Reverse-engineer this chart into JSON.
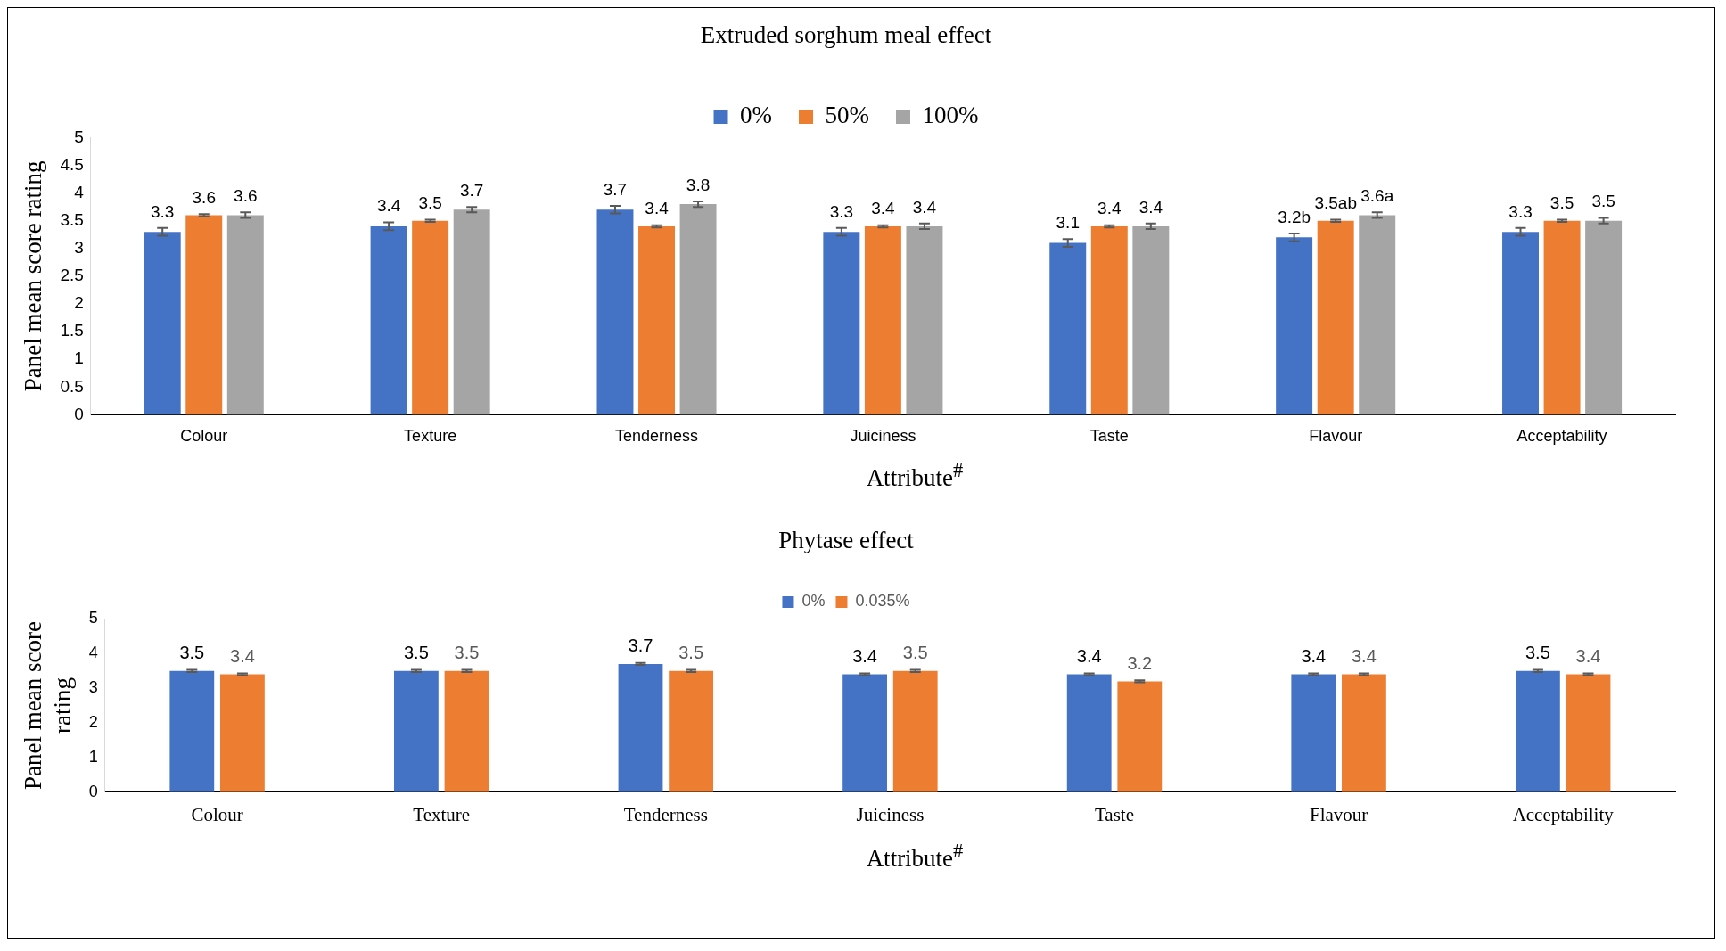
{
  "chart_data": [
    {
      "type": "bar",
      "title": "Extruded sorghum meal effect",
      "xlabel": "Attribute$^{#}$",
      "ylabel": "Panel mean score rating",
      "categories": [
        "Colour",
        "Texture",
        "Tenderness",
        "Juiciness",
        "Taste",
        "Flavour",
        "Acceptability"
      ],
      "series": [
        {
          "name": "0%",
          "color": "#4472c4",
          "values": [
            3.3,
            3.4,
            3.7,
            3.3,
            3.1,
            3.2,
            3.3
          ],
          "errors": [
            0.07,
            0.07,
            0.07,
            0.07,
            0.07,
            0.07,
            0.07
          ],
          "value_labels": [
            "3.3",
            "3.4",
            "3.7",
            "3.3",
            "3.1",
            "3.2b",
            "3.3"
          ]
        },
        {
          "name": "50%",
          "color": "#ed7d31",
          "values": [
            3.6,
            3.5,
            3.4,
            3.4,
            3.4,
            3.5,
            3.5
          ],
          "errors": [
            0.02,
            0.02,
            0.02,
            0.02,
            0.02,
            0.02,
            0.02
          ],
          "value_labels": [
            "3.6",
            "3.5",
            "3.4",
            "3.4",
            "3.4",
            "3.5ab",
            "3.5"
          ]
        },
        {
          "name": "100%",
          "color": "#a5a5a5",
          "values": [
            3.6,
            3.7,
            3.8,
            3.4,
            3.4,
            3.6,
            3.5
          ],
          "errors": [
            0.05,
            0.05,
            0.05,
            0.05,
            0.05,
            0.05,
            0.05
          ],
          "value_labels": [
            "3.6",
            "3.7",
            "3.8",
            "3.4",
            "3.4",
            "3.6a",
            "3.5"
          ]
        }
      ],
      "ylim": [
        0,
        5
      ],
      "yticks": [
        0,
        0.5,
        1,
        1.5,
        2,
        2.5,
        3,
        3.5,
        4,
        4.5,
        5
      ],
      "grid": false,
      "legend": "top"
    },
    {
      "type": "bar",
      "title": "Phytase effect",
      "xlabel": "Attribute$^{#}$",
      "ylabel": "Panel mean score rating",
      "categories": [
        "Colour",
        "Texture",
        "Tenderness",
        "Juiciness",
        "Taste",
        "Flavour",
        "Acceptability"
      ],
      "series": [
        {
          "name": "0%",
          "color": "#4472c4",
          "values": [
            3.5,
            3.5,
            3.7,
            3.4,
            3.4,
            3.4,
            3.5
          ],
          "errors": [
            0.03,
            0.03,
            0.03,
            0.03,
            0.03,
            0.03,
            0.03
          ]
        },
        {
          "name": "0.035%",
          "color": "#ed7d31",
          "values": [
            3.4,
            3.5,
            3.5,
            3.5,
            3.2,
            3.4,
            3.4
          ],
          "errors": [
            0.03,
            0.03,
            0.03,
            0.03,
            0.03,
            0.03,
            0.03
          ]
        }
      ],
      "ylim": [
        0,
        5
      ],
      "yticks": [
        0,
        1,
        2,
        3,
        4,
        5
      ],
      "grid": false,
      "legend": "top",
      "data_labels": true
    }
  ]
}
